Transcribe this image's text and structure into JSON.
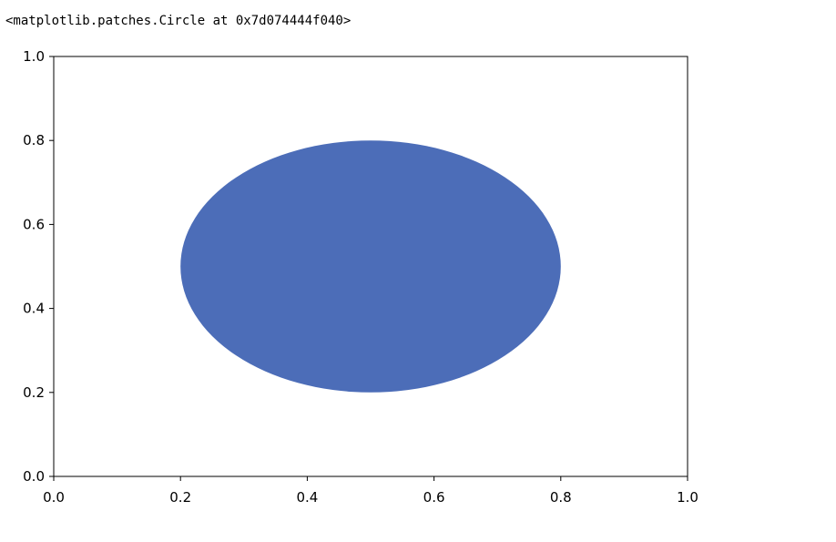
{
  "output": {
    "repr_text": "<matplotlib.patches.Circle at 0x7d074444f040>"
  },
  "chart_data": {
    "type": "scatter",
    "title": "",
    "xlabel": "",
    "ylabel": "",
    "xlim": [
      0.0,
      1.0
    ],
    "ylim": [
      0.0,
      1.0
    ],
    "grid": false,
    "xticks": [
      "0.0",
      "0.2",
      "0.4",
      "0.6",
      "0.8",
      "1.0"
    ],
    "yticks": [
      "0.0",
      "0.2",
      "0.4",
      "0.6",
      "0.8",
      "1.0"
    ],
    "shapes": [
      {
        "kind": "circle",
        "center": [
          0.5,
          0.5
        ],
        "radius": 0.3,
        "color": "#4c6db8"
      }
    ]
  }
}
